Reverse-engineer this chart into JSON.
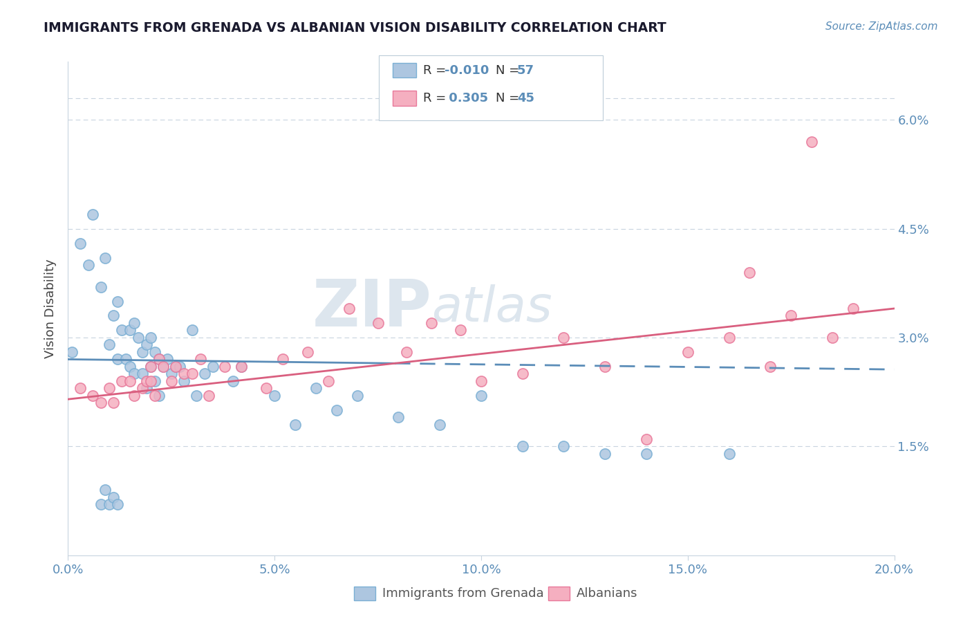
{
  "title": "IMMIGRANTS FROM GRENADA VS ALBANIAN VISION DISABILITY CORRELATION CHART",
  "source": "Source: ZipAtlas.com",
  "xlabel_label": "Immigrants from Grenada",
  "xlabel_label2": "Albanians",
  "ylabel": "Vision Disability",
  "xlim": [
    0.0,
    0.2
  ],
  "ylim": [
    0.0,
    0.068
  ],
  "xticks": [
    0.0,
    0.05,
    0.1,
    0.15,
    0.2
  ],
  "xtick_labels": [
    "0.0%",
    "5.0%",
    "10.0%",
    "15.0%",
    "20.0%"
  ],
  "yticks": [
    0.015,
    0.03,
    0.045,
    0.06
  ],
  "ytick_labels": [
    "1.5%",
    "3.0%",
    "4.5%",
    "6.0%"
  ],
  "legend_r1": "-0.010",
  "legend_n1": "57",
  "legend_r2": "0.305",
  "legend_n2": "45",
  "blue_color": "#adc6e0",
  "blue_edge": "#7aafd4",
  "pink_color": "#f5afc0",
  "pink_edge": "#e8789a",
  "trend_blue_color": "#5b8db8",
  "trend_pink_color": "#d95f7f",
  "watermark_zip": "ZIP",
  "watermark_atlas": "atlas",
  "background_color": "#ffffff",
  "grid_color": "#c8d4df",
  "tick_color": "#5b8db8",
  "title_color": "#1a1a2e",
  "ylabel_color": "#444444",
  "blue_dots_x": [
    0.001,
    0.003,
    0.005,
    0.006,
    0.008,
    0.009,
    0.01,
    0.011,
    0.012,
    0.012,
    0.013,
    0.014,
    0.015,
    0.015,
    0.016,
    0.016,
    0.017,
    0.018,
    0.018,
    0.019,
    0.019,
    0.02,
    0.02,
    0.021,
    0.021,
    0.022,
    0.022,
    0.023,
    0.024,
    0.025,
    0.026,
    0.027,
    0.028,
    0.03,
    0.031,
    0.033,
    0.035,
    0.04,
    0.042,
    0.05,
    0.055,
    0.06,
    0.065,
    0.07,
    0.08,
    0.09,
    0.1,
    0.11,
    0.12,
    0.13,
    0.14,
    0.16,
    0.008,
    0.009,
    0.01,
    0.011,
    0.012
  ],
  "blue_dots_y": [
    0.028,
    0.043,
    0.04,
    0.047,
    0.037,
    0.041,
    0.029,
    0.033,
    0.035,
    0.027,
    0.031,
    0.027,
    0.031,
    0.026,
    0.032,
    0.025,
    0.03,
    0.028,
    0.025,
    0.029,
    0.023,
    0.03,
    0.026,
    0.028,
    0.024,
    0.027,
    0.022,
    0.026,
    0.027,
    0.025,
    0.026,
    0.026,
    0.024,
    0.031,
    0.022,
    0.025,
    0.026,
    0.024,
    0.026,
    0.022,
    0.018,
    0.023,
    0.02,
    0.022,
    0.019,
    0.018,
    0.022,
    0.015,
    0.015,
    0.014,
    0.014,
    0.014,
    0.007,
    0.009,
    0.007,
    0.008,
    0.007
  ],
  "pink_dots_x": [
    0.003,
    0.006,
    0.008,
    0.01,
    0.011,
    0.013,
    0.015,
    0.016,
    0.018,
    0.019,
    0.02,
    0.02,
    0.021,
    0.022,
    0.023,
    0.025,
    0.026,
    0.028,
    0.03,
    0.032,
    0.034,
    0.038,
    0.042,
    0.048,
    0.052,
    0.058,
    0.063,
    0.068,
    0.075,
    0.082,
    0.088,
    0.095,
    0.1,
    0.11,
    0.12,
    0.13,
    0.14,
    0.15,
    0.16,
    0.165,
    0.17,
    0.175,
    0.18,
    0.185,
    0.19
  ],
  "pink_dots_y": [
    0.023,
    0.022,
    0.021,
    0.023,
    0.021,
    0.024,
    0.024,
    0.022,
    0.023,
    0.024,
    0.026,
    0.024,
    0.022,
    0.027,
    0.026,
    0.024,
    0.026,
    0.025,
    0.025,
    0.027,
    0.022,
    0.026,
    0.026,
    0.023,
    0.027,
    0.028,
    0.024,
    0.034,
    0.032,
    0.028,
    0.032,
    0.031,
    0.024,
    0.025,
    0.03,
    0.026,
    0.016,
    0.028,
    0.03,
    0.039,
    0.026,
    0.033,
    0.057,
    0.03,
    0.034
  ],
  "blue_trend_start_x": 0.0,
  "blue_trend_end_x": 0.2,
  "blue_trend_start_y": 0.027,
  "blue_trend_end_y": 0.0256,
  "pink_trend_start_x": 0.0,
  "pink_trend_end_x": 0.2,
  "pink_trend_start_y": 0.0215,
  "pink_trend_end_y": 0.034
}
